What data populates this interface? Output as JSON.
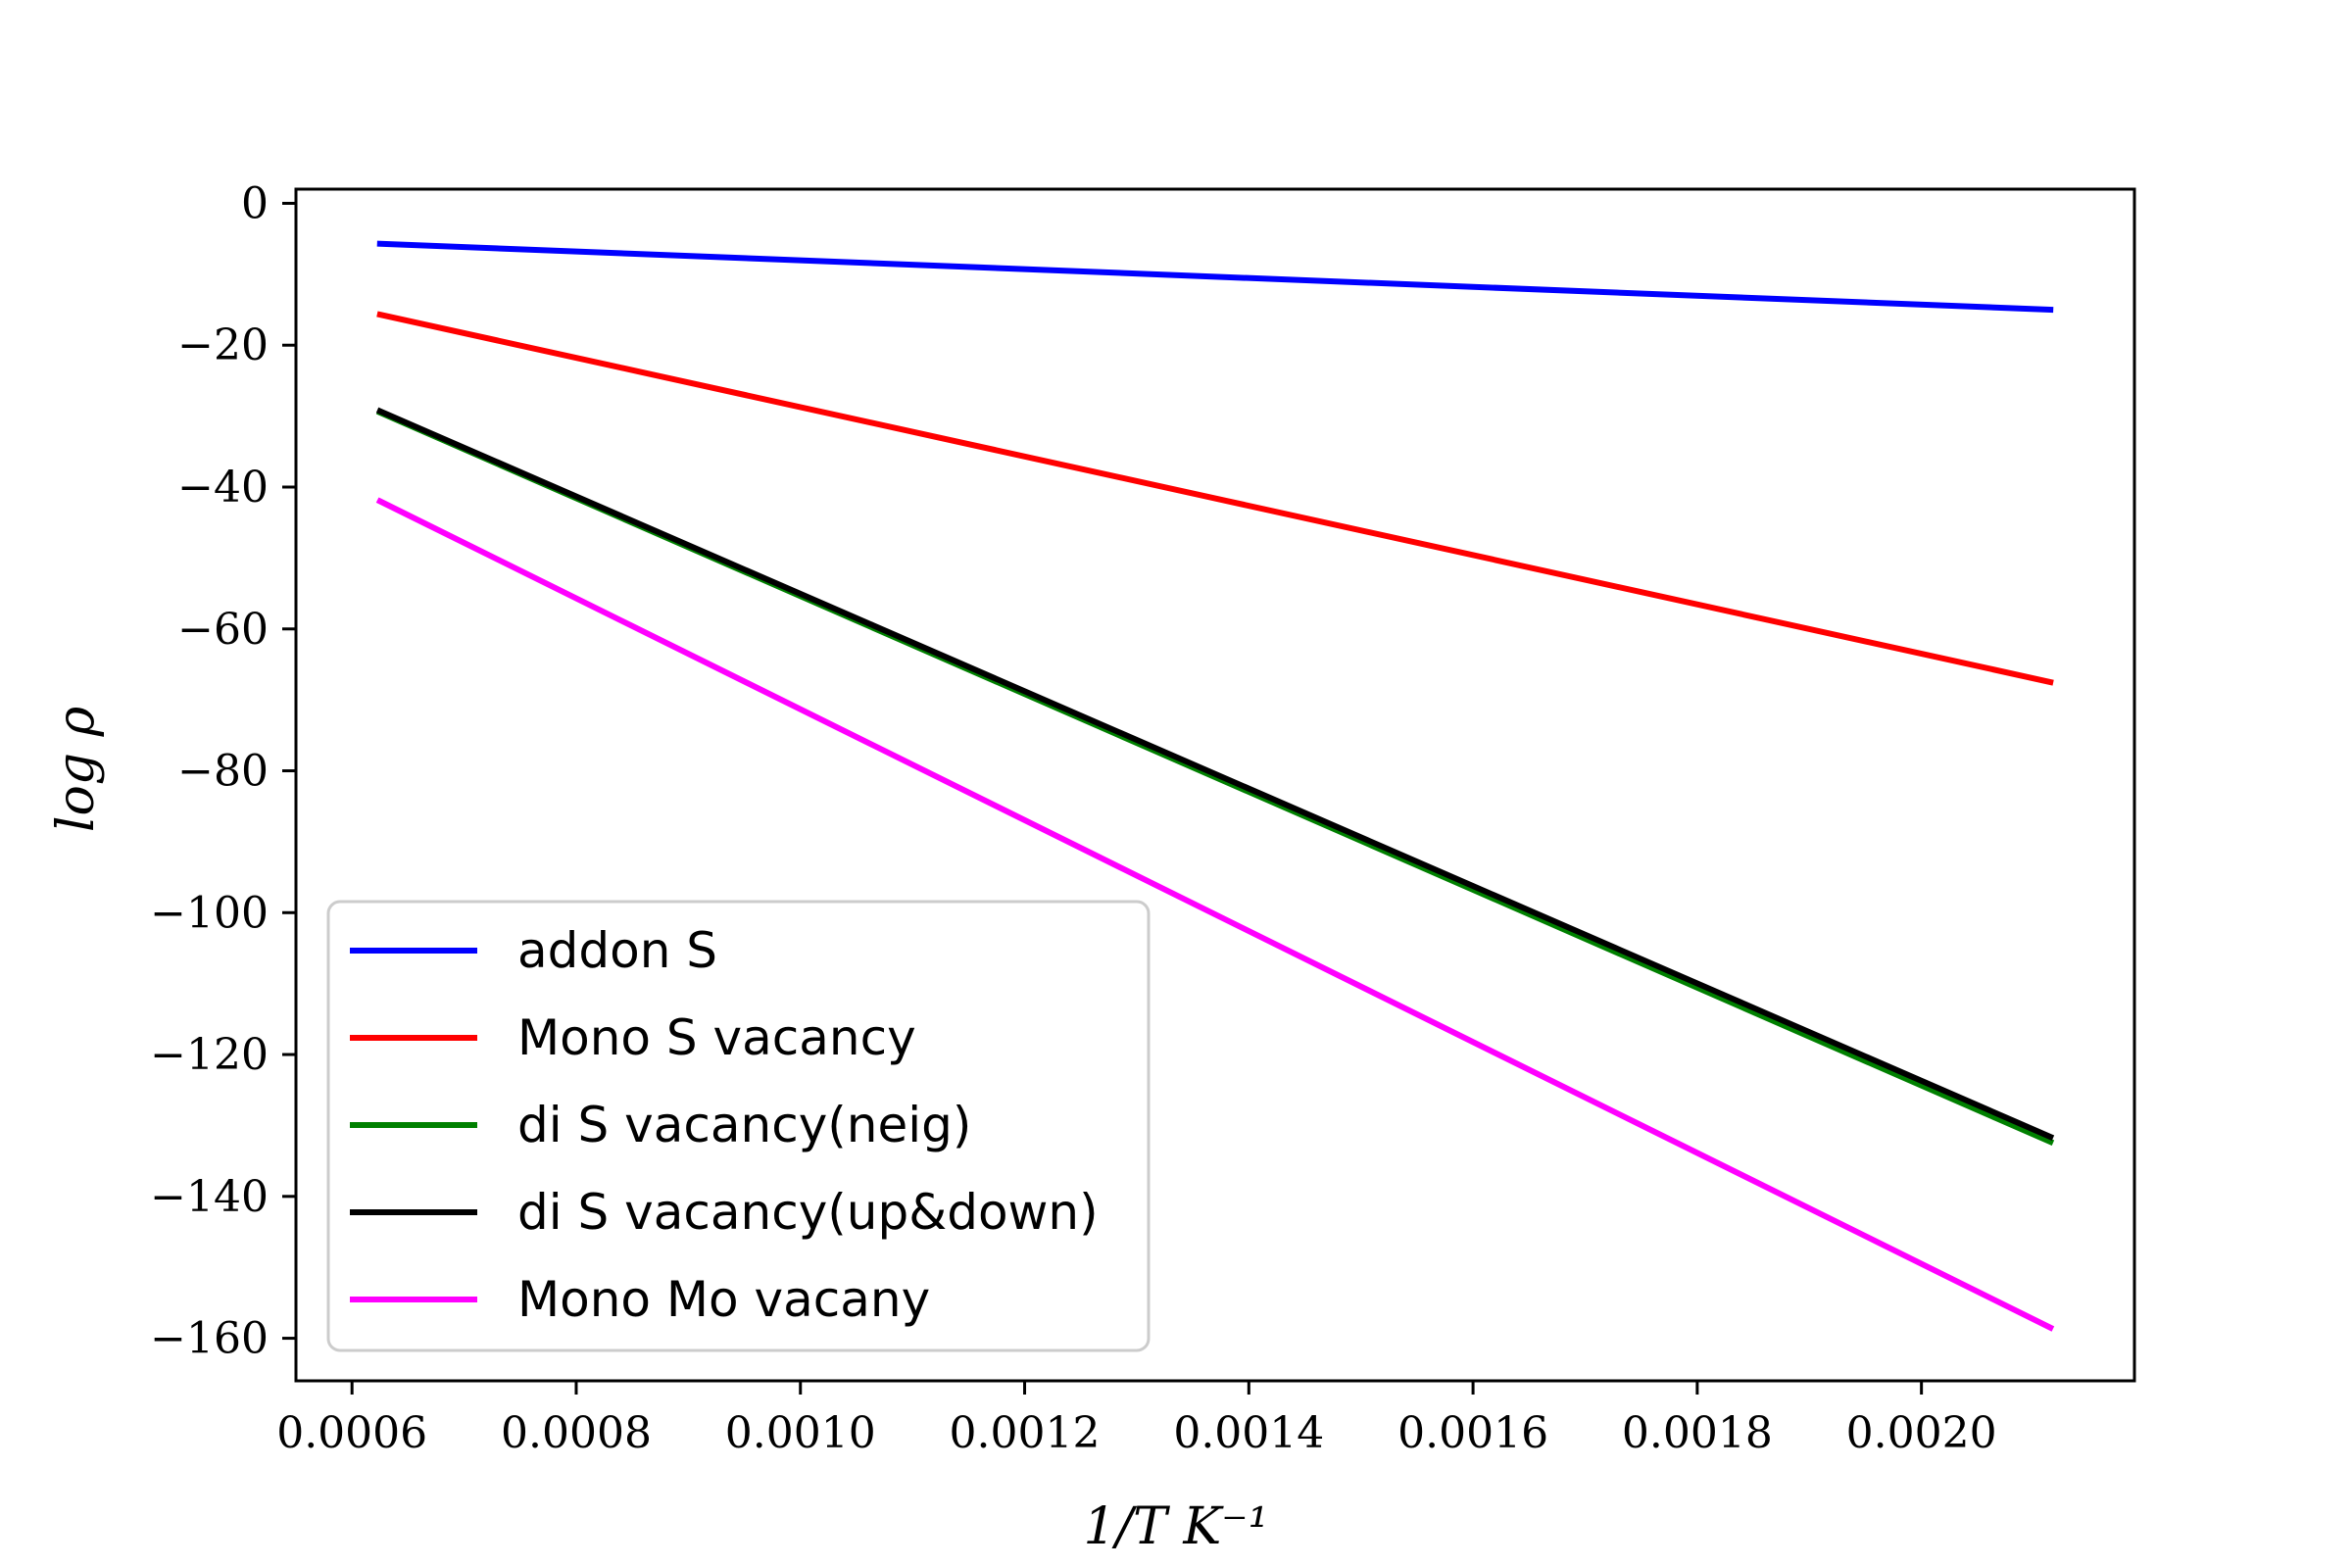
{
  "chart_data": {
    "type": "line",
    "xlabel": "1/T K⁻¹",
    "ylabel": "log ρ",
    "xlim": [
      0.00055,
      0.00219
    ],
    "ylim": [
      -166,
      2
    ],
    "x_ticks": [
      0.0006,
      0.0008,
      0.001,
      0.0012,
      0.0014,
      0.0016,
      0.0018,
      0.002
    ],
    "x_tick_labels": [
      "0.0006",
      "0.0008",
      "0.0010",
      "0.0012",
      "0.0014",
      "0.0016",
      "0.0018",
      "0.0020"
    ],
    "y_ticks": [
      0,
      -20,
      -40,
      -60,
      -80,
      -100,
      -120,
      -140,
      -160
    ],
    "y_tick_labels": [
      "0",
      "−20",
      "−40",
      "−60",
      "−80",
      "−100",
      "−120",
      "−140",
      "−160"
    ],
    "grid": false,
    "legend_position": "bottom-left",
    "series": [
      {
        "name": "addon S",
        "color": "#0000ff",
        "x": [
          0.000625,
          0.002115
        ],
        "y": [
          -5.7,
          -15.0
        ]
      },
      {
        "name": "Mono S vacancy",
        "color": "#ff0000",
        "x": [
          0.000625,
          0.002115
        ],
        "y": [
          -15.7,
          -67.5
        ]
      },
      {
        "name": "di S vacancy(neig)",
        "color": "#008000",
        "x": [
          0.000625,
          0.002115
        ],
        "y": [
          -29.5,
          -132.3
        ]
      },
      {
        "name": "di S vacancy(up&down)",
        "color": "#000000",
        "x": [
          0.000625,
          0.002115
        ],
        "y": [
          -29.3,
          -131.6
        ]
      },
      {
        "name": "Mono Mo vacany",
        "color": "#ff00ff",
        "x": [
          0.000625,
          0.002115
        ],
        "y": [
          -42.0,
          -158.5
        ]
      }
    ]
  }
}
